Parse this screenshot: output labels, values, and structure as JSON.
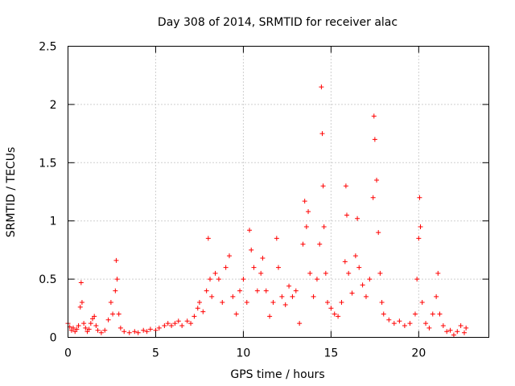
{
  "chart_data": {
    "type": "scatter",
    "title": "Day 308 of 2014, SRMTID for receiver alac",
    "xlabel": "GPS time / hours",
    "ylabel": "SRMTID / TECUs",
    "xlim": [
      0,
      24
    ],
    "ylim": [
      0,
      2.5
    ],
    "xticks": [
      0,
      5,
      10,
      15,
      20
    ],
    "xtick_labels": [
      "0",
      "5",
      "10",
      "15",
      "20"
    ],
    "yticks": [
      0,
      0.5,
      1,
      1.5,
      2,
      2.5
    ],
    "ytick_labels": [
      "0",
      "0.5",
      "1",
      "1.5",
      "2",
      "2.5"
    ],
    "grid": true,
    "marker": "+",
    "color": "#ff0000",
    "series": [
      {
        "name": "SRMTID",
        "points": [
          [
            0.0,
            0.12
          ],
          [
            0.1,
            0.09
          ],
          [
            0.2,
            0.06
          ],
          [
            0.3,
            0.08
          ],
          [
            0.4,
            0.05
          ],
          [
            0.5,
            0.07
          ],
          [
            0.6,
            0.1
          ],
          [
            0.7,
            0.26
          ],
          [
            0.75,
            0.47
          ],
          [
            0.8,
            0.3
          ],
          [
            0.9,
            0.12
          ],
          [
            1.0,
            0.08
          ],
          [
            1.1,
            0.05
          ],
          [
            1.2,
            0.07
          ],
          [
            1.3,
            0.12
          ],
          [
            1.4,
            0.16
          ],
          [
            1.5,
            0.18
          ],
          [
            1.6,
            0.1
          ],
          [
            1.7,
            0.06
          ],
          [
            1.9,
            0.04
          ],
          [
            2.1,
            0.06
          ],
          [
            2.3,
            0.15
          ],
          [
            2.45,
            0.3
          ],
          [
            2.55,
            0.2
          ],
          [
            2.7,
            0.4
          ],
          [
            2.75,
            0.66
          ],
          [
            2.8,
            0.5
          ],
          [
            2.9,
            0.2
          ],
          [
            3.0,
            0.08
          ],
          [
            3.2,
            0.05
          ],
          [
            3.5,
            0.04
          ],
          [
            3.8,
            0.05
          ],
          [
            4.0,
            0.04
          ],
          [
            4.3,
            0.06
          ],
          [
            4.5,
            0.05
          ],
          [
            4.7,
            0.07
          ],
          [
            5.0,
            0.06
          ],
          [
            5.2,
            0.08
          ],
          [
            5.5,
            0.1
          ],
          [
            5.7,
            0.12
          ],
          [
            5.9,
            0.1
          ],
          [
            6.1,
            0.12
          ],
          [
            6.3,
            0.14
          ],
          [
            6.5,
            0.1
          ],
          [
            6.8,
            0.14
          ],
          [
            7.0,
            0.12
          ],
          [
            7.2,
            0.18
          ],
          [
            7.4,
            0.25
          ],
          [
            7.5,
            0.3
          ],
          [
            7.7,
            0.22
          ],
          [
            7.9,
            0.4
          ],
          [
            8.0,
            0.85
          ],
          [
            8.1,
            0.5
          ],
          [
            8.2,
            0.35
          ],
          [
            8.4,
            0.55
          ],
          [
            8.6,
            0.5
          ],
          [
            8.8,
            0.3
          ],
          [
            9.0,
            0.6
          ],
          [
            9.2,
            0.7
          ],
          [
            9.4,
            0.35
          ],
          [
            9.6,
            0.2
          ],
          [
            9.8,
            0.4
          ],
          [
            10.0,
            0.5
          ],
          [
            10.2,
            0.3
          ],
          [
            10.35,
            0.92
          ],
          [
            10.45,
            0.75
          ],
          [
            10.6,
            0.6
          ],
          [
            10.8,
            0.4
          ],
          [
            11.0,
            0.55
          ],
          [
            11.1,
            0.68
          ],
          [
            11.3,
            0.4
          ],
          [
            11.5,
            0.18
          ],
          [
            11.7,
            0.3
          ],
          [
            11.9,
            0.85
          ],
          [
            12.0,
            0.6
          ],
          [
            12.2,
            0.35
          ],
          [
            12.4,
            0.28
          ],
          [
            12.6,
            0.44
          ],
          [
            12.8,
            0.35
          ],
          [
            13.0,
            0.4
          ],
          [
            13.2,
            0.12
          ],
          [
            13.4,
            0.8
          ],
          [
            13.5,
            1.17
          ],
          [
            13.6,
            0.95
          ],
          [
            13.7,
            1.08
          ],
          [
            13.8,
            0.55
          ],
          [
            14.0,
            0.35
          ],
          [
            14.2,
            0.5
          ],
          [
            14.35,
            0.8
          ],
          [
            14.45,
            2.15
          ],
          [
            14.5,
            1.75
          ],
          [
            14.55,
            1.3
          ],
          [
            14.6,
            0.95
          ],
          [
            14.7,
            0.55
          ],
          [
            14.8,
            0.3
          ],
          [
            15.0,
            0.25
          ],
          [
            15.2,
            0.2
          ],
          [
            15.4,
            0.18
          ],
          [
            15.6,
            0.3
          ],
          [
            15.8,
            0.65
          ],
          [
            15.85,
            1.3
          ],
          [
            15.9,
            1.05
          ],
          [
            16.0,
            0.55
          ],
          [
            16.2,
            0.38
          ],
          [
            16.4,
            0.7
          ],
          [
            16.5,
            1.02
          ],
          [
            16.6,
            0.6
          ],
          [
            16.8,
            0.45
          ],
          [
            17.0,
            0.35
          ],
          [
            17.2,
            0.5
          ],
          [
            17.4,
            1.2
          ],
          [
            17.45,
            1.9
          ],
          [
            17.5,
            1.7
          ],
          [
            17.6,
            1.35
          ],
          [
            17.7,
            0.9
          ],
          [
            17.8,
            0.55
          ],
          [
            17.9,
            0.3
          ],
          [
            18.0,
            0.2
          ],
          [
            18.3,
            0.15
          ],
          [
            18.6,
            0.12
          ],
          [
            18.9,
            0.14
          ],
          [
            19.2,
            0.1
          ],
          [
            19.5,
            0.12
          ],
          [
            19.8,
            0.2
          ],
          [
            19.9,
            0.5
          ],
          [
            20.0,
            0.85
          ],
          [
            20.05,
            1.2
          ],
          [
            20.1,
            0.95
          ],
          [
            20.2,
            0.3
          ],
          [
            20.4,
            0.12
          ],
          [
            20.6,
            0.08
          ],
          [
            20.8,
            0.2
          ],
          [
            21.0,
            0.35
          ],
          [
            21.1,
            0.55
          ],
          [
            21.2,
            0.2
          ],
          [
            21.4,
            0.1
          ],
          [
            21.6,
            0.05
          ],
          [
            21.8,
            0.06
          ],
          [
            22.0,
            0.02
          ],
          [
            22.2,
            0.05
          ],
          [
            22.4,
            0.1
          ],
          [
            22.6,
            0.04
          ],
          [
            22.7,
            0.08
          ]
        ]
      }
    ]
  }
}
